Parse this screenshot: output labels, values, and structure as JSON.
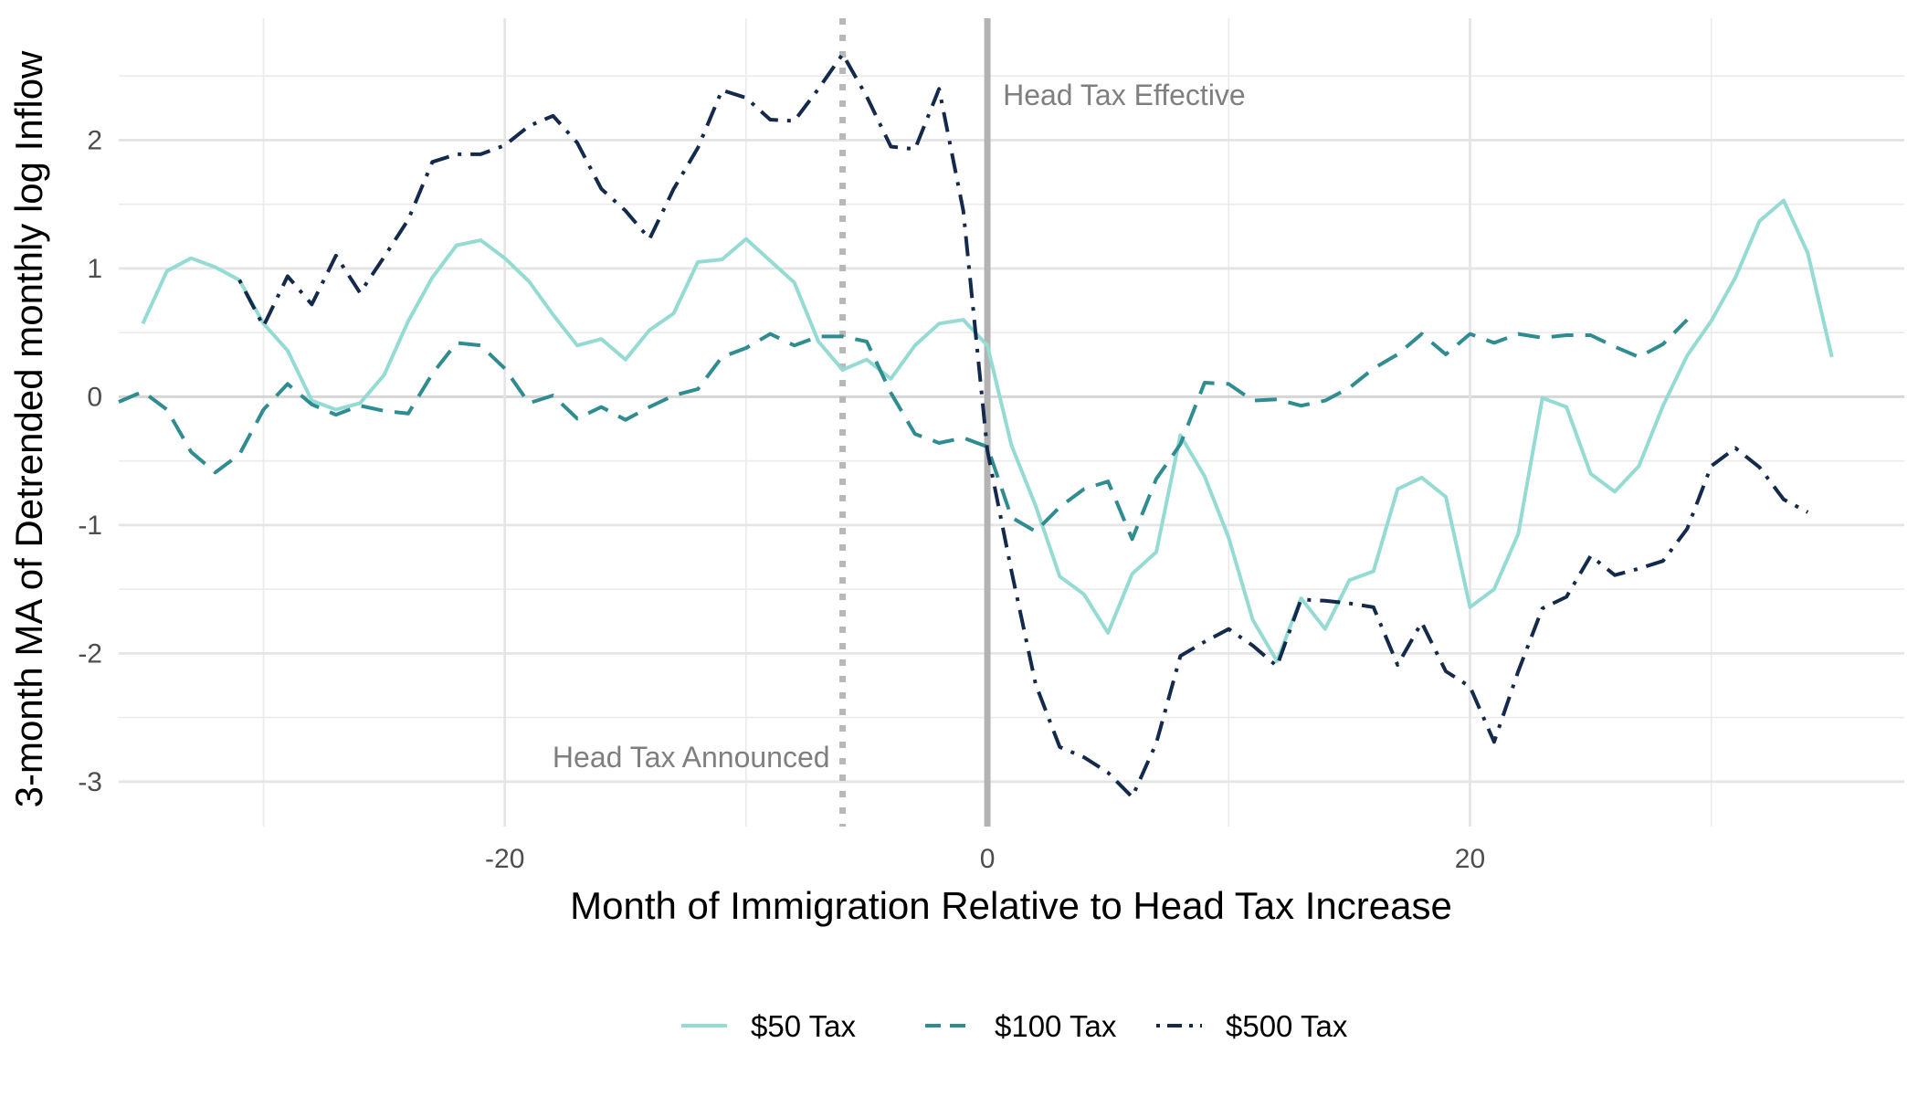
{
  "chart_data": {
    "type": "line",
    "title": "",
    "xlabel": "Month of Immigration Relative to Head Tax Increase",
    "ylabel": "3-month MA of Detrended monthly log Inflow",
    "xlim": [
      -36,
      38
    ],
    "ylim": [
      -3.35,
      2.95
    ],
    "x_ticks": [
      -20,
      0,
      20
    ],
    "x_tick_labels": [
      "-20",
      "0",
      "20"
    ],
    "y_ticks": [
      -3,
      -2,
      -1,
      0,
      1,
      2
    ],
    "y_tick_labels": [
      "-3",
      "-2",
      "-1",
      "0",
      "1",
      "2"
    ],
    "grid": true,
    "legend_position": "bottom",
    "annotations": [
      {
        "label": "Head Tax Effective",
        "x": 0,
        "style": "solid"
      },
      {
        "label": "Head Tax Announced",
        "x": -6,
        "style": "dotted"
      }
    ],
    "series": [
      {
        "name": "$50 Tax",
        "color": "#94dbd4",
        "dash": "solid",
        "x": [
          -35,
          -34,
          -33,
          -32,
          -31,
          -30,
          -29,
          -28,
          -27,
          -26,
          -25,
          -24,
          -23,
          -22,
          -21,
          -20,
          -19,
          -18,
          -17,
          -16,
          -15,
          -14,
          -13,
          -12,
          -11,
          -10,
          -9,
          -8,
          -7,
          -6,
          -5,
          -4,
          -3,
          -2,
          -1,
          0,
          1,
          2,
          3,
          4,
          5,
          6,
          7,
          8,
          9,
          10,
          11,
          12,
          13,
          14,
          15,
          16,
          17,
          18,
          19,
          20,
          21,
          22,
          23,
          24,
          25,
          26,
          27,
          28,
          29,
          30,
          31,
          32,
          33,
          34,
          35
        ],
        "y": [
          0.57,
          0.98,
          1.08,
          1.01,
          0.91,
          0.57,
          0.36,
          -0.03,
          -0.1,
          -0.05,
          0.17,
          0.59,
          0.93,
          1.18,
          1.22,
          1.08,
          0.9,
          0.64,
          0.4,
          0.45,
          0.29,
          0.52,
          0.65,
          1.05,
          1.07,
          1.23,
          1.06,
          0.89,
          0.43,
          0.21,
          0.29,
          0.14,
          0.4,
          0.57,
          0.6,
          0.4,
          -0.38,
          -0.85,
          -1.4,
          -1.54,
          -1.84,
          -1.38,
          -1.21,
          -0.3,
          -0.62,
          -1.1,
          -1.74,
          -2.06,
          -1.57,
          -1.81,
          -1.43,
          -1.36,
          -0.72,
          -0.63,
          -0.78,
          -1.64,
          -1.5,
          -1.07,
          -0.01,
          -0.08,
          -0.6,
          -0.74,
          -0.54,
          -0.07,
          0.32,
          0.59,
          0.93,
          1.37,
          1.53,
          1.12,
          0.31
        ]
      },
      {
        "name": "$100 Tax",
        "color": "#2f8c91",
        "dash": "dashed",
        "x": [
          -36,
          -35,
          -34,
          -33,
          -32,
          -31,
          -30,
          -29,
          -28,
          -27,
          -26,
          -25,
          -24,
          -23,
          -22,
          -21,
          -20,
          -19,
          -18,
          -17,
          -16,
          -15,
          -14,
          -13,
          -12,
          -11,
          -10,
          -9,
          -8,
          -7,
          -6,
          -5,
          -4,
          -3,
          -2,
          -1,
          0,
          1,
          2,
          3,
          4,
          5,
          6,
          7,
          8,
          9,
          10,
          11,
          12,
          13,
          14,
          15,
          16,
          17,
          18,
          19,
          20,
          21,
          22,
          23,
          24,
          25,
          26,
          27,
          28,
          29
        ],
        "y": [
          -0.04,
          0.04,
          -0.1,
          -0.43,
          -0.59,
          -0.45,
          -0.1,
          0.1,
          -0.06,
          -0.14,
          -0.07,
          -0.11,
          -0.13,
          0.18,
          0.42,
          0.4,
          0.22,
          -0.05,
          0.01,
          -0.17,
          -0.08,
          -0.18,
          -0.08,
          0.01,
          0.06,
          0.31,
          0.38,
          0.49,
          0.4,
          0.47,
          0.47,
          0.43,
          0.03,
          -0.29,
          -0.36,
          -0.32,
          -0.39,
          -0.94,
          -1.05,
          -0.86,
          -0.72,
          -0.66,
          -1.11,
          -0.64,
          -0.37,
          0.11,
          0.1,
          -0.03,
          -0.02,
          -0.07,
          -0.03,
          0.07,
          0.22,
          0.33,
          0.49,
          0.33,
          0.49,
          0.42,
          0.49,
          0.46,
          0.48,
          0.48,
          0.39,
          0.31,
          0.41,
          0.6
        ]
      },
      {
        "name": "$500 Tax",
        "color": "#142a4d",
        "dash": "dotdash",
        "x": [
          -31,
          -30,
          -29,
          -28,
          -27,
          -26,
          -25,
          -24,
          -23,
          -22,
          -21,
          -20,
          -19,
          -18,
          -17,
          -16,
          -15,
          -14,
          -13,
          -12,
          -11,
          -10,
          -9,
          -8,
          -7,
          -6,
          -5,
          -4,
          -3,
          -2,
          -1,
          0,
          1,
          2,
          3,
          4,
          5,
          6,
          7,
          8,
          9,
          10,
          11,
          12,
          13,
          14,
          15,
          16,
          17,
          18,
          19,
          20,
          21,
          22,
          23,
          24,
          25,
          26,
          27,
          28,
          29,
          30,
          31,
          32,
          33,
          34
        ],
        "y": [
          0.91,
          0.55,
          0.94,
          0.72,
          1.1,
          0.81,
          1.09,
          1.38,
          1.83,
          1.89,
          1.89,
          1.96,
          2.11,
          2.19,
          1.98,
          1.62,
          1.45,
          1.23,
          1.62,
          1.94,
          2.39,
          2.33,
          2.16,
          2.15,
          2.4,
          2.67,
          2.34,
          1.95,
          1.93,
          2.4,
          1.45,
          -0.42,
          -1.36,
          -2.24,
          -2.73,
          -2.81,
          -2.93,
          -3.12,
          -2.7,
          -2.02,
          -1.91,
          -1.81,
          -1.94,
          -2.1,
          -1.58,
          -1.59,
          -1.61,
          -1.64,
          -2.09,
          -1.76,
          -2.14,
          -2.26,
          -2.69,
          -2.14,
          -1.65,
          -1.56,
          -1.24,
          -1.39,
          -1.34,
          -1.28,
          -1.03,
          -0.54,
          -0.4,
          -0.55,
          -0.8,
          -0.9
        ]
      }
    ]
  }
}
